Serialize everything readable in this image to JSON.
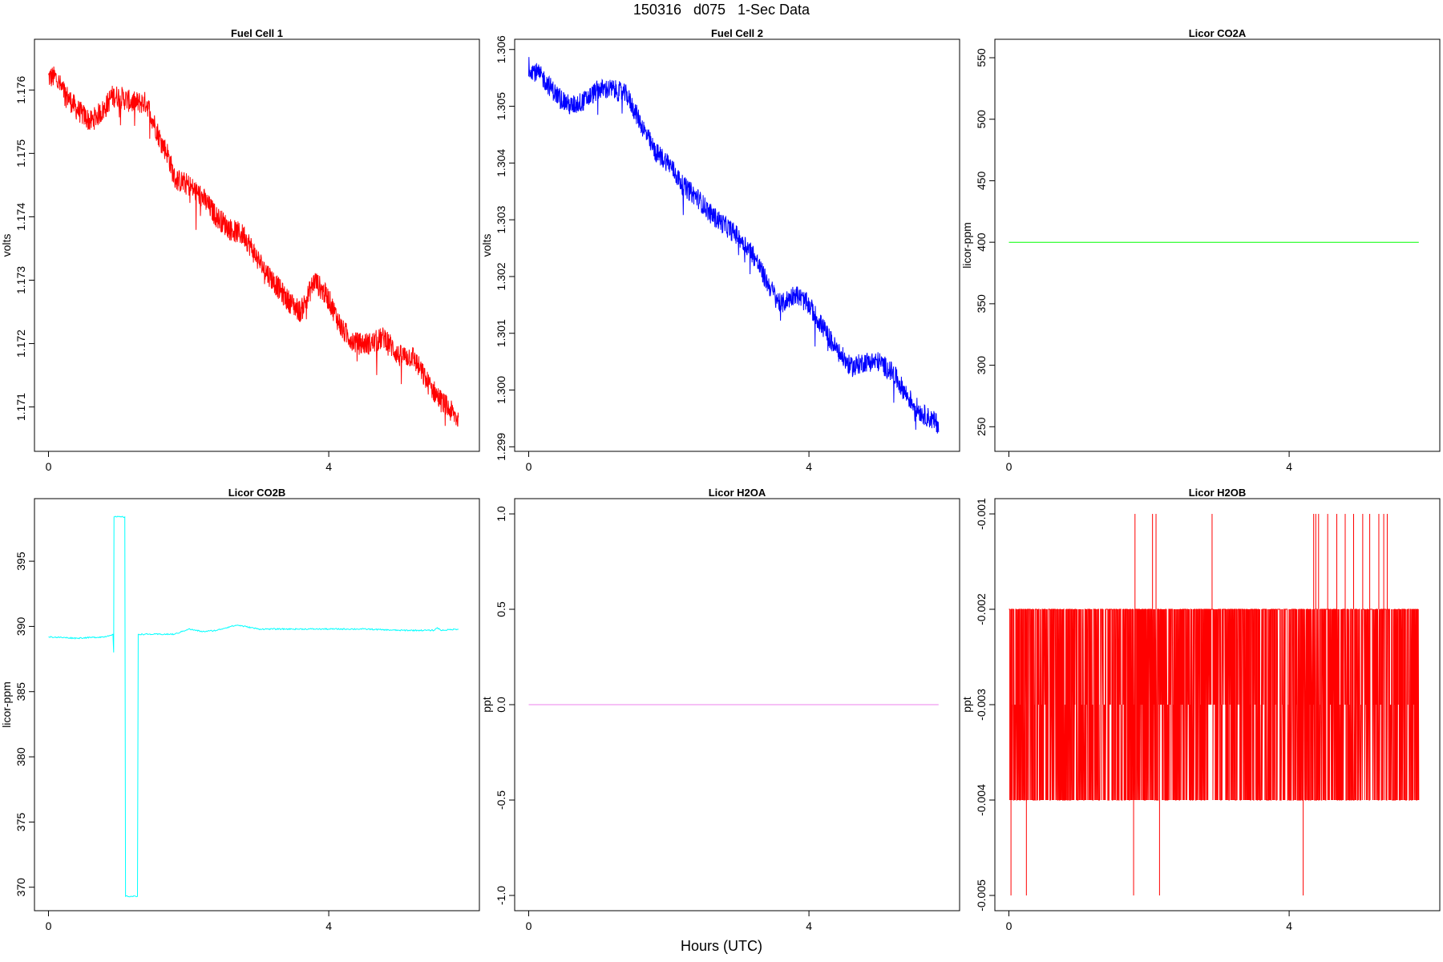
{
  "figure": {
    "title": "150316   d075   1-Sec Data",
    "xlabel": "Hours (UTC)"
  },
  "chart_data": [
    {
      "type": "line",
      "title": "Fuel Cell 1",
      "xlabel": "",
      "ylabel": "volts",
      "color": "#ff0000",
      "xlim": [
        -0.2,
        6.15
      ],
      "ylim": [
        1.1703,
        1.1768
      ],
      "xticks": [
        0,
        4
      ],
      "yticks": [
        1.171,
        1.172,
        1.173,
        1.174,
        1.175,
        1.176
      ],
      "ytick_labels": [
        "1.171",
        "1.172",
        "1.173",
        "1.174",
        "1.175",
        "1.176"
      ],
      "noise": 0.00018,
      "x": [
        0,
        0.1,
        0.2,
        0.4,
        0.6,
        0.8,
        0.9,
        1.0,
        1.2,
        1.4,
        1.6,
        1.7,
        1.8,
        2.0,
        2.2,
        2.4,
        2.6,
        2.8,
        3.0,
        3.2,
        3.4,
        3.6,
        3.8,
        4.0,
        4.2,
        4.4,
        4.6,
        4.8,
        5.0,
        5.2,
        5.4,
        5.6,
        5.85
      ],
      "y": [
        1.1762,
        1.1762,
        1.176,
        1.1757,
        1.1755,
        1.1757,
        1.1759,
        1.1759,
        1.1758,
        1.1758,
        1.1752,
        1.175,
        1.1746,
        1.1745,
        1.1743,
        1.174,
        1.1738,
        1.1737,
        1.1733,
        1.173,
        1.1727,
        1.1725,
        1.173,
        1.1727,
        1.1722,
        1.172,
        1.172,
        1.1721,
        1.1718,
        1.1718,
        1.1714,
        1.1711,
        1.1708
      ]
    },
    {
      "type": "line",
      "title": "Fuel Cell 2",
      "xlabel": "",
      "ylabel": "volts",
      "color": "#0000ff",
      "xlim": [
        -0.2,
        6.15
      ],
      "ylim": [
        1.29892,
        1.30618
      ],
      "xticks": [
        0,
        4
      ],
      "yticks": [
        1.299,
        1.3,
        1.301,
        1.302,
        1.303,
        1.304,
        1.305,
        1.306
      ],
      "ytick_labels": [
        "1.299",
        "1.300",
        "1.301",
        "1.302",
        "1.303",
        "1.304",
        "1.305",
        "1.306"
      ],
      "noise": 0.00018,
      "x": [
        0,
        0.2,
        0.4,
        0.6,
        0.8,
        1.0,
        1.2,
        1.4,
        1.6,
        1.8,
        2.0,
        2.2,
        2.4,
        2.6,
        2.8,
        3.0,
        3.2,
        3.4,
        3.6,
        3.8,
        4.0,
        4.2,
        4.4,
        4.6,
        4.8,
        5.0,
        5.2,
        5.4,
        5.6,
        5.85
      ],
      "y": [
        1.3057,
        1.3055,
        1.3052,
        1.305,
        1.3051,
        1.3053,
        1.3053,
        1.3052,
        1.3047,
        1.3042,
        1.304,
        1.3036,
        1.3034,
        1.3031,
        1.3029,
        1.3027,
        1.3024,
        1.3019,
        1.3015,
        1.3017,
        1.3015,
        1.3011,
        1.3007,
        1.3004,
        1.3005,
        1.3005,
        1.3003,
        1.2999,
        1.2996,
        1.2994
      ]
    },
    {
      "type": "line",
      "title": "Licor CO2A",
      "xlabel": "",
      "ylabel": "licor-ppm",
      "color": "#00ff00",
      "xlim": [
        -0.2,
        6.15
      ],
      "ylim": [
        230,
        565
      ],
      "xticks": [
        0,
        4
      ],
      "yticks": [
        250,
        300,
        350,
        400,
        450,
        500,
        550
      ],
      "ytick_labels": [
        "250",
        "300",
        "350",
        "400",
        "450",
        "500",
        "550"
      ],
      "noise": 0,
      "x": [
        0,
        5.85
      ],
      "y": [
        400,
        400
      ]
    },
    {
      "type": "line",
      "title": "Licor CO2B",
      "xlabel": "",
      "ylabel": "licor-ppm",
      "color": "#00ffff",
      "xlim": [
        -0.2,
        6.15
      ],
      "ylim": [
        368.2,
        399.8
      ],
      "xticks": [
        0,
        4
      ],
      "yticks": [
        370,
        375,
        380,
        385,
        390,
        395
      ],
      "ytick_labels": [
        "370",
        "375",
        "380",
        "385",
        "390",
        "395"
      ],
      "noise": 0.05,
      "x": [
        0,
        0.4,
        0.8,
        0.92,
        0.93,
        0.935,
        1.09,
        1.1,
        1.27,
        1.28,
        1.5,
        1.8,
        2.0,
        2.2,
        2.4,
        2.6,
        2.7,
        3.0,
        3.5,
        4.0,
        4.5,
        5.0,
        5.5,
        5.55,
        5.6,
        5.85
      ],
      "y": [
        389.2,
        389.1,
        389.2,
        389.4,
        388.0,
        398.4,
        398.4,
        369.3,
        369.3,
        389.4,
        389.4,
        389.4,
        389.8,
        389.6,
        389.7,
        390.0,
        390.1,
        389.8,
        389.8,
        389.8,
        389.8,
        389.7,
        389.7,
        389.9,
        389.7,
        389.8
      ]
    },
    {
      "type": "line",
      "title": "Licor H2OA",
      "xlabel": "",
      "ylabel": "ppt",
      "color": "#ee82ee",
      "xlim": [
        -0.2,
        6.15
      ],
      "ylim": [
        -1.08,
        1.08
      ],
      "xticks": [
        0,
        4
      ],
      "yticks": [
        -1.0,
        -0.5,
        0.0,
        0.5,
        1.0
      ],
      "ytick_labels": [
        "-1.0",
        "-0.5",
        "0.0",
        "0.5",
        "1.0"
      ],
      "noise": 0,
      "x": [
        0,
        5.85
      ],
      "y": [
        0,
        0
      ]
    },
    {
      "type": "line",
      "title": "Licor H2OB",
      "xlabel": "",
      "ylabel": "ppt",
      "color": "#ff0000",
      "xlim": [
        -0.2,
        6.15
      ],
      "ylim": [
        -0.00516,
        -0.00084
      ],
      "xticks": [
        0,
        4
      ],
      "yticks": [
        -0.005,
        -0.004,
        -0.003,
        -0.002,
        -0.001
      ],
      "ytick_labels": [
        "-0.005",
        "-0.004",
        "-0.003",
        "-0.002",
        "-0.001"
      ],
      "levels": [
        -0.002,
        -0.003,
        -0.004
      ],
      "x": [
        0,
        5.85
      ],
      "spikes_high": [
        1.8,
        2.05,
        2.1,
        2.9,
        4.35,
        4.38,
        4.42,
        4.55,
        4.68,
        4.8,
        4.92,
        5.05,
        5.15,
        5.28,
        5.35,
        5.4
      ],
      "spikes_low": [
        0.03,
        0.25,
        1.78,
        2.15,
        4.2
      ]
    }
  ]
}
